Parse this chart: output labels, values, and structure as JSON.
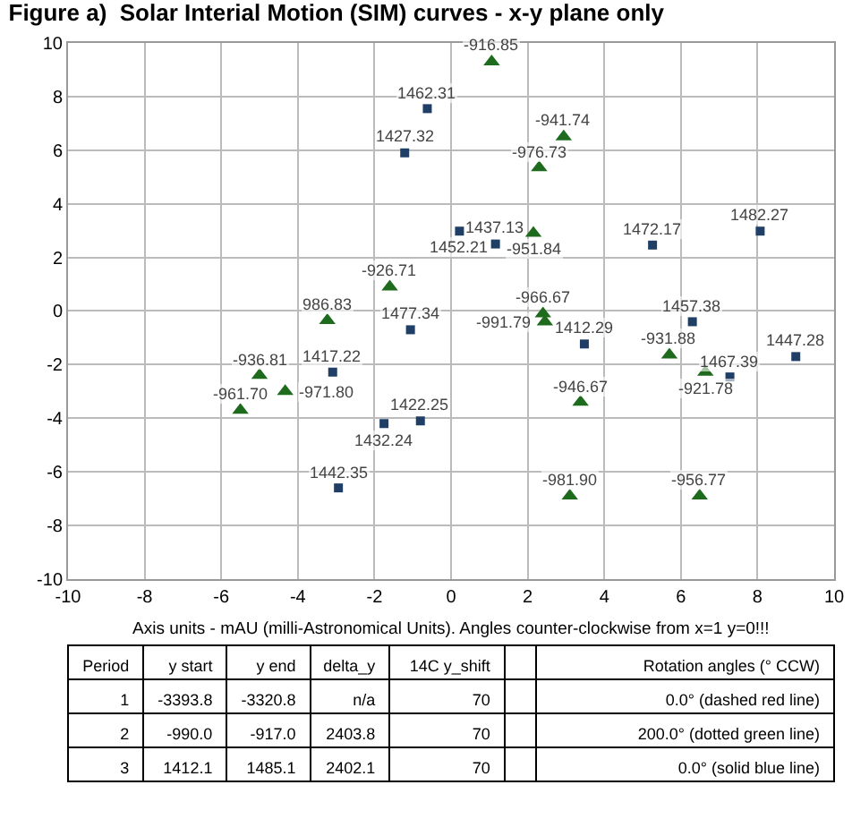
{
  "chart_data": {
    "type": "scatter",
    "title": "Figure a)  Solar Interial Motion (SIM) curves - x-y plane only",
    "xlim": [
      -10,
      10
    ],
    "xticks": [
      -10,
      -8,
      -6,
      -4,
      -2,
      0,
      2,
      4,
      6,
      8,
      10
    ],
    "ylim": [
      -10,
      10
    ],
    "yticks": [
      -10,
      -8,
      -6,
      -4,
      -2,
      0,
      2,
      4,
      6,
      8,
      10
    ],
    "grid": true,
    "legend": false,
    "series": [
      {
        "color": "#1f3f66",
        "marker": "square",
        "x": [
          3.48,
          -3.09,
          -0.8,
          -1.21,
          -1.75,
          1.16,
          -2.94,
          9.0,
          0.22,
          6.3,
          -0.62,
          7.28,
          5.26,
          -1.06,
          8.07
        ],
        "values": [
          -1.23,
          -2.28,
          -4.1,
          5.9,
          -4.2,
          2.5,
          -6.6,
          -1.7,
          2.98,
          -0.4,
          7.55,
          -2.46,
          2.46,
          -0.7,
          2.98
        ]
      },
      {
        "color": "#1e6b1e",
        "marker": "triangle",
        "x": [
          1.06,
          6.64,
          -1.6,
          5.7,
          -5.0,
          2.94,
          3.38,
          2.15,
          6.49,
          -5.5,
          2.4,
          -4.33,
          2.3,
          3.1,
          -3.23,
          2.45
        ],
        "values": [
          9.3,
          -2.28,
          0.9,
          -1.64,
          -2.4,
          6.5,
          -3.4,
          2.9,
          -6.9,
          -3.7,
          -0.1,
          -3.0,
          5.35,
          -6.9,
          -0.35,
          -0.4
        ]
      }
    ],
    "annotations": [
      "Axis units - mAU (milli-Astronomical Units). Angles counter-clockwise from x=1 y=0!!!",
      "Period\ty start\ty end\tdelta_y\t14C y_shift\t\tRotation angles (° CCW)",
      "1\t-3393.8\t-3320.8\tn/a\t70\t\t0.0° (dashed red line)",
      "2\t-990.0\t-917.0\t2403.8\t70\t\t200.0° (dotted green line)",
      "3\t1412.1\t1485.1\t2402.1\t70\t\t0.0° (solid blue line)",
      {
        "text": "1412.29",
        "x": 3.48,
        "y": -1.23
      },
      {
        "text": "1417.22",
        "x": -3.09,
        "y": -2.28
      },
      {
        "text": "1422.25",
        "x": -0.8,
        "y": -4.1
      },
      {
        "text": "1427.32",
        "x": -1.21,
        "y": 5.9
      },
      {
        "text": "1432.24",
        "x": -1.75,
        "y": -4.2
      },
      {
        "text": "1437.13",
        "x": 1.16,
        "y": 2.5
      },
      {
        "text": "1442.35",
        "x": -2.94,
        "y": -6.6
      },
      {
        "text": "1447.28",
        "x": 9.0,
        "y": -1.7
      },
      {
        "text": "1452.21",
        "x": 0.22,
        "y": 2.98
      },
      {
        "text": "1457.38",
        "x": 6.3,
        "y": -0.4
      },
      {
        "text": "1462.31",
        "x": -0.62,
        "y": 7.55
      },
      {
        "text": "1467.39",
        "x": 7.28,
        "y": -2.46
      },
      {
        "text": "1472.17",
        "x": 5.26,
        "y": 2.46
      },
      {
        "text": "1477.34",
        "x": -1.06,
        "y": -0.7
      },
      {
        "text": "1482.27",
        "x": 8.07,
        "y": 2.98
      },
      {
        "text": "-916.85",
        "x": 1.06,
        "y": 9.3
      },
      {
        "text": "-921.78",
        "x": 6.64,
        "y": -2.28
      },
      {
        "text": "-926.71",
        "x": -1.6,
        "y": 0.9
      },
      {
        "text": "-931.88",
        "x": 5.7,
        "y": -1.64
      },
      {
        "text": "-936.81",
        "x": -5.0,
        "y": -2.4
      },
      {
        "text": "-941.74",
        "x": 2.94,
        "y": 6.5
      },
      {
        "text": "-946.67",
        "x": 3.38,
        "y": -3.4
      },
      {
        "text": "-951.84",
        "x": 2.15,
        "y": 2.9
      },
      {
        "text": "-956.77",
        "x": 6.49,
        "y": -6.9
      },
      {
        "text": "-961.70",
        "x": -5.5,
        "y": -3.7
      },
      {
        "text": "-966.67",
        "x": 2.4,
        "y": -0.1
      },
      {
        "text": "-971.80",
        "x": -4.33,
        "y": -3.0
      },
      {
        "text": "-976.73",
        "x": 2.3,
        "y": 5.35
      },
      {
        "text": "-981.90",
        "x": 3.1,
        "y": -6.9
      },
      {
        "text": "986.83",
        "x": -3.23,
        "y": -0.35
      },
      {
        "text": "-991.79",
        "x": 2.45,
        "y": -0.4
      }
    ]
  }
}
